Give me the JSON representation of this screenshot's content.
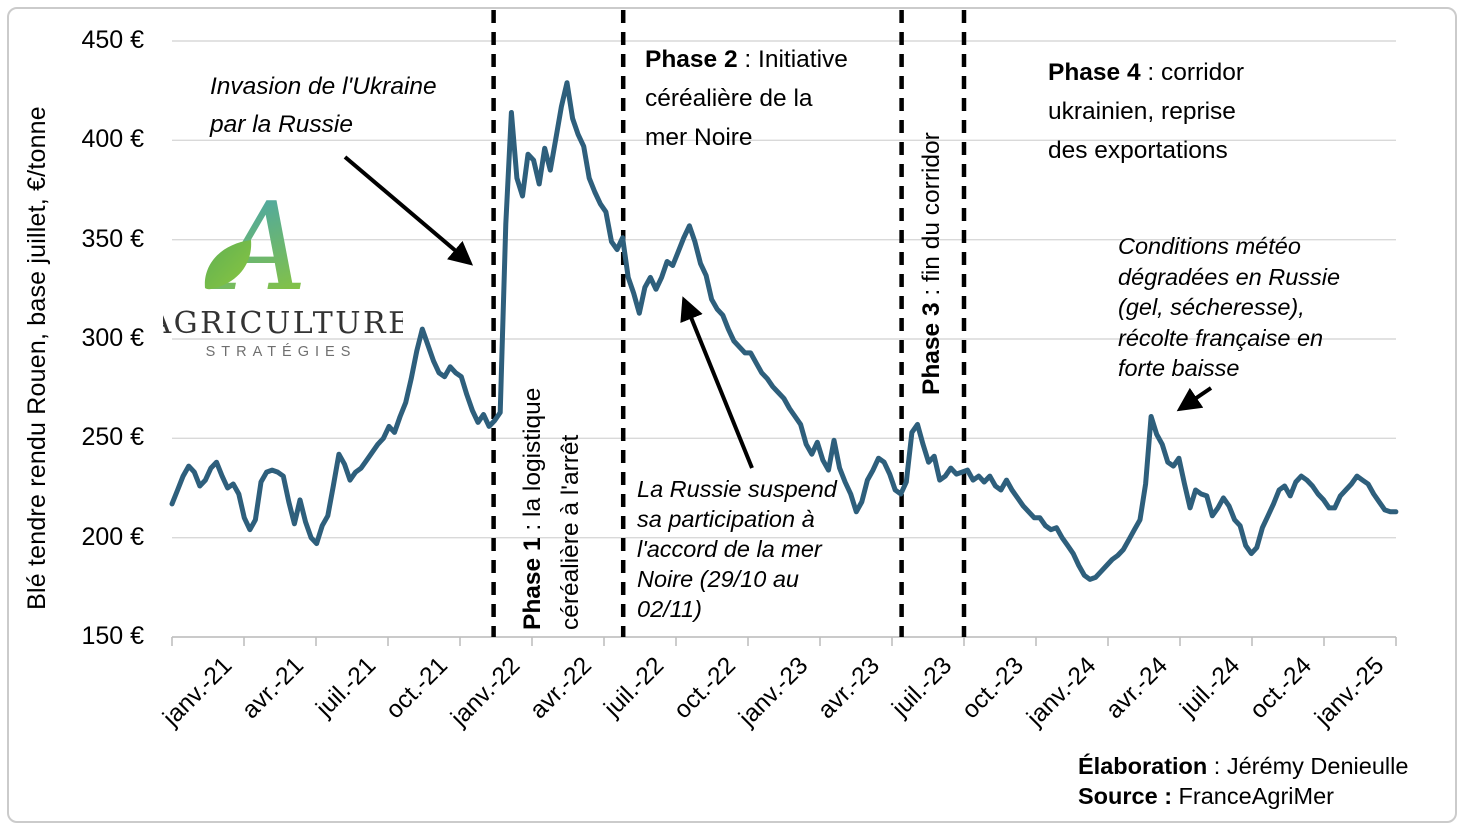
{
  "chart_data": {
    "type": "line",
    "title": "",
    "y_axis_title": "Blé tendre rendu Rouen, base juillet, €/tonne",
    "unit": "€/tonne",
    "frequency": "weekly",
    "x_start": "janv. 2021",
    "x_end": "mars 2025",
    "ylim": [
      150,
      450
    ],
    "grid": "horizontal",
    "legend": false,
    "y_tick_values": [
      450,
      400,
      350,
      300,
      250,
      200,
      150
    ],
    "y_tick_labels": [
      "450 €",
      "400 €",
      "350 €",
      "300 €",
      "250 €",
      "200 €",
      "150 €"
    ],
    "x_tick_labels": [
      "janv.-21",
      "avr.-21",
      "juil.-21",
      "oct.-21",
      "janv.-22",
      "avr.-22",
      "juil.-22",
      "oct.-22",
      "janv.-23",
      "avr.-23",
      "juil.-23",
      "oct.-23",
      "janv.-24",
      "avr.-24",
      "juil.-24",
      "oct.-24",
      "janv.-25"
    ],
    "x_range_months": 51,
    "months_per_point": 0.2318,
    "phase_lines_months": [
      13.4,
      18.8,
      30.4,
      33.0
    ],
    "series": [
      {
        "name": "Blé tendre rendu Rouen, base juillet",
        "color": "#2E5F7C",
        "values": [
          217,
          224,
          231,
          236,
          233,
          226,
          229,
          235,
          238,
          231,
          225,
          227,
          222,
          210,
          204,
          209,
          228,
          233,
          234,
          233,
          231,
          218,
          207,
          219,
          208,
          200,
          197,
          206,
          211,
          226,
          242,
          237,
          229,
          233,
          235,
          239,
          243,
          247,
          250,
          256,
          253,
          261,
          268,
          280,
          294,
          305,
          297,
          289,
          283,
          281,
          286,
          283,
          281,
          272,
          264,
          258,
          262,
          256,
          259,
          263,
          358,
          414,
          381,
          372,
          393,
          390,
          378,
          396,
          385,
          401,
          417,
          429,
          411,
          403,
          397,
          381,
          374,
          368,
          364,
          349,
          345,
          351,
          331,
          323,
          313,
          326,
          331,
          325,
          331,
          339,
          337,
          344,
          351,
          357,
          349,
          338,
          332,
          320,
          315,
          312,
          305,
          299,
          296,
          293,
          293,
          288,
          283,
          280,
          276,
          273,
          270,
          265,
          261,
          257,
          247,
          242,
          248,
          239,
          234,
          249,
          235,
          228,
          222,
          213,
          218,
          229,
          234,
          240,
          238,
          232,
          224,
          222,
          228,
          253,
          257,
          247,
          238,
          241,
          229,
          231,
          235,
          232,
          233,
          234,
          229,
          231,
          228,
          231,
          226,
          224,
          229,
          224,
          220,
          216,
          213,
          210,
          210,
          206,
          204,
          205,
          200,
          196,
          192,
          186,
          181,
          179,
          180,
          183,
          186,
          189,
          191,
          194,
          199,
          204,
          209,
          227,
          261,
          252,
          247,
          238,
          236,
          240,
          227,
          215,
          224,
          222,
          221,
          211,
          215,
          220,
          216,
          209,
          206,
          196,
          192,
          195,
          205,
          211,
          217,
          224,
          226,
          221,
          228,
          231,
          229,
          226,
          222,
          219,
          215,
          215,
          221,
          224,
          227,
          231,
          229,
          227,
          222,
          218,
          214,
          213,
          213
        ]
      }
    ]
  },
  "phases": [
    {
      "label": "Phase 1",
      "text": " : la logistique\ncéréalière à l'arrêt"
    },
    {
      "label": "Phase 2",
      "text": " : Initiative\ncéréalière de la\nmer Noire"
    },
    {
      "label": "Phase 3",
      "text": " : fin du corridor"
    },
    {
      "label": "Phase 4",
      "text": " : corridor\nukrainien, reprise\ndes exportations"
    }
  ],
  "annotations": {
    "invasion": "Invasion de l'Ukraine\npar la Russie",
    "suspension": "La Russie suspend\nsa participation à\nl'accord de la mer\nNoire (29/10 au\n02/11)",
    "meteo": "Conditions météo\ndégradées en Russie\n(gel, sécheresse),\nrécolte française en\nforte baisse"
  },
  "logo": {
    "letter": "A",
    "name": "AGRICULTURE",
    "subtitle": "STRATÉGIES",
    "gradient_top": "#3C9FC4",
    "gradient_bottom": "#86C341"
  },
  "credits": {
    "elaboration_label": "Élaboration",
    "elaboration_value": " : Jérémy Denieulle",
    "source_label": "Source :",
    "source_value": " FranceAgriMer"
  }
}
